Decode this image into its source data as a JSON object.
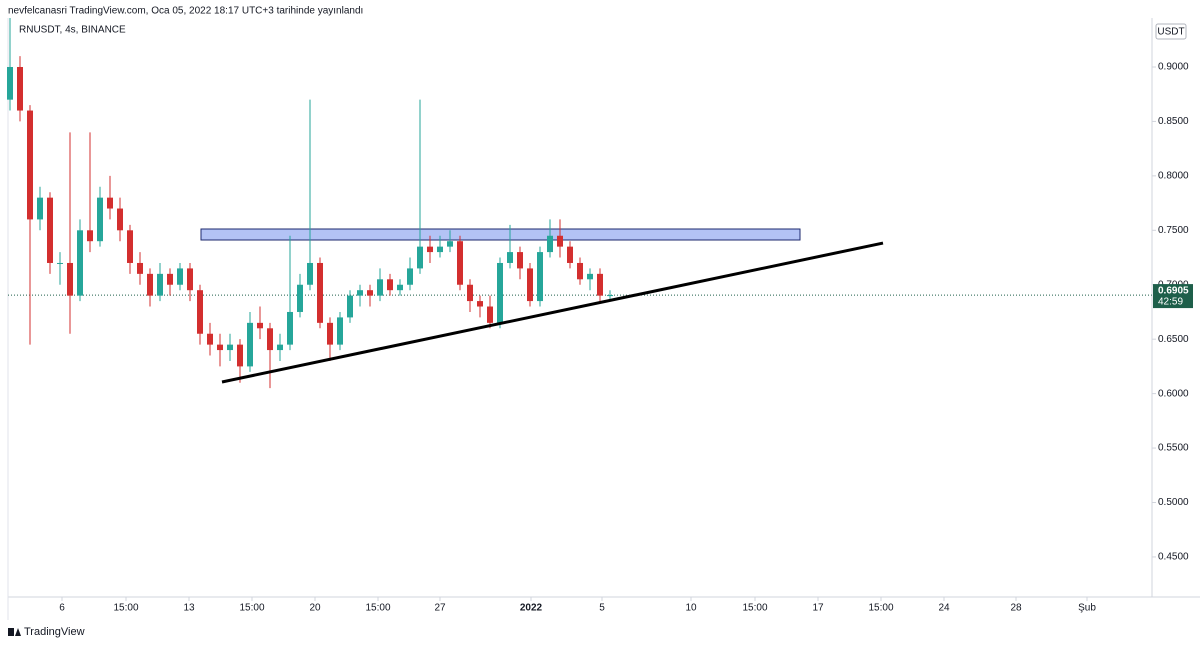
{
  "header": "nevfelcanasri TradingView.com, Oca 05, 2022 18:17 UTC+3 tarihinde yayınlandı",
  "brand": "TradingView",
  "chart_data": {
    "type": "candlestick",
    "symbol": "RNUSDT, 4s, BINANCE",
    "currency": "USDT",
    "up_color": "#26a69a",
    "down_color": "#d32f2f",
    "open": [
      0.87,
      0.9,
      0.86,
      0.76,
      0.78,
      0.72,
      0.72,
      0.69,
      0.75,
      0.74,
      0.78,
      0.77,
      0.75,
      0.72,
      0.71,
      0.69,
      0.71,
      0.7,
      0.715,
      0.695,
      0.655,
      0.645,
      0.64,
      0.645,
      0.625,
      0.665,
      0.66,
      0.64,
      0.645,
      0.675,
      0.7,
      0.72,
      0.665,
      0.645,
      0.67,
      0.69,
      0.695,
      0.69,
      0.705,
      0.695,
      0.7,
      0.715,
      0.735,
      0.73,
      0.735,
      0.74,
      0.7,
      0.685,
      0.68,
      0.665,
      0.72,
      0.73,
      0.715,
      0.685,
      0.73,
      0.745,
      0.735,
      0.72,
      0.705,
      0.71,
      0.69
    ],
    "high": [
      0.945,
      0.91,
      0.865,
      0.79,
      0.785,
      0.73,
      0.84,
      0.76,
      0.84,
      0.79,
      0.8,
      0.78,
      0.755,
      0.73,
      0.715,
      0.72,
      0.715,
      0.72,
      0.72,
      0.7,
      0.665,
      0.655,
      0.655,
      0.65,
      0.675,
      0.68,
      0.665,
      0.655,
      0.745,
      0.71,
      0.87,
      0.725,
      0.67,
      0.675,
      0.695,
      0.7,
      0.7,
      0.715,
      0.71,
      0.705,
      0.725,
      0.87,
      0.745,
      0.745,
      0.75,
      0.745,
      0.705,
      0.69,
      0.69,
      0.725,
      0.755,
      0.735,
      0.72,
      0.735,
      0.76,
      0.76,
      0.74,
      0.725,
      0.715,
      0.715,
      0.695
    ],
    "low": [
      0.86,
      0.85,
      0.645,
      0.75,
      0.71,
      0.7,
      0.655,
      0.685,
      0.73,
      0.735,
      0.76,
      0.74,
      0.71,
      0.7,
      0.68,
      0.685,
      0.69,
      0.695,
      0.685,
      0.645,
      0.635,
      0.625,
      0.63,
      0.61,
      0.62,
      0.65,
      0.605,
      0.63,
      0.64,
      0.67,
      0.695,
      0.66,
      0.63,
      0.64,
      0.665,
      0.68,
      0.68,
      0.685,
      0.69,
      0.69,
      0.695,
      0.71,
      0.72,
      0.725,
      0.73,
      0.695,
      0.675,
      0.67,
      0.66,
      0.66,
      0.715,
      0.705,
      0.68,
      0.68,
      0.725,
      0.725,
      0.715,
      0.7,
      0.695,
      0.685,
      0.685
    ],
    "close": [
      0.9,
      0.86,
      0.76,
      0.78,
      0.72,
      0.72,
      0.69,
      0.75,
      0.74,
      0.78,
      0.77,
      0.75,
      0.72,
      0.71,
      0.69,
      0.71,
      0.7,
      0.715,
      0.695,
      0.655,
      0.645,
      0.64,
      0.645,
      0.625,
      0.665,
      0.66,
      0.64,
      0.645,
      0.675,
      0.7,
      0.72,
      0.665,
      0.645,
      0.67,
      0.69,
      0.695,
      0.69,
      0.705,
      0.695,
      0.7,
      0.715,
      0.735,
      0.73,
      0.735,
      0.74,
      0.7,
      0.685,
      0.68,
      0.665,
      0.72,
      0.73,
      0.715,
      0.685,
      0.73,
      0.745,
      0.735,
      0.72,
      0.705,
      0.71,
      0.69,
      0.6905
    ],
    "xlim": [
      -0.2,
      114.2
    ],
    "xticks": [
      {
        "value": 5.2,
        "label": "6"
      },
      {
        "value": 11.6,
        "label": "15:00"
      },
      {
        "value": 17.9,
        "label": "13"
      },
      {
        "value": 24.2,
        "label": "15:00"
      },
      {
        "value": 30.5,
        "label": "20"
      },
      {
        "value": 36.8,
        "label": "15:00"
      },
      {
        "value": 43,
        "label": "27"
      },
      {
        "value": 52.1,
        "label": "2022"
      },
      {
        "value": 59.2,
        "label": "5"
      },
      {
        "value": 68.1,
        "label": "10"
      },
      {
        "value": 74.5,
        "label": "15:00"
      },
      {
        "value": 80.8,
        "label": "17"
      },
      {
        "value": 87.1,
        "label": "15:00"
      },
      {
        "value": 93.4,
        "label": "24"
      },
      {
        "value": 100.6,
        "label": "28"
      },
      {
        "value": 107.7,
        "label": "Şub"
      }
    ],
    "ylim": [
      0.4132,
      0.945
    ],
    "yticks": [
      {
        "value": 0.9,
        "label": "0.9000"
      },
      {
        "value": 0.85,
        "label": "0.8500"
      },
      {
        "value": 0.8,
        "label": "0.8000"
      },
      {
        "value": 0.75,
        "label": "0.7500"
      },
      {
        "value": 0.7,
        "label": "0.7000"
      },
      {
        "value": 0.65,
        "label": "0.6500"
      },
      {
        "value": 0.6,
        "label": "0.6000"
      },
      {
        "value": 0.55,
        "label": "0.5500"
      },
      {
        "value": 0.5,
        "label": "0.5000"
      },
      {
        "value": 0.45,
        "label": "0.4500"
      }
    ],
    "last_price": {
      "value": 0.6905,
      "label": "0.6905"
    },
    "countdown": "42:59",
    "price_tag_color": "#1e5f4a",
    "zone": {
      "x": [
        19.1,
        79
      ],
      "y": [
        0.7411,
        0.7512
      ],
      "color": "#b3c3f5"
    },
    "trendline": {
      "x": [
        21.2,
        87.3
      ],
      "y": [
        0.6107,
        0.7383
      ],
      "color": "#000000"
    }
  }
}
